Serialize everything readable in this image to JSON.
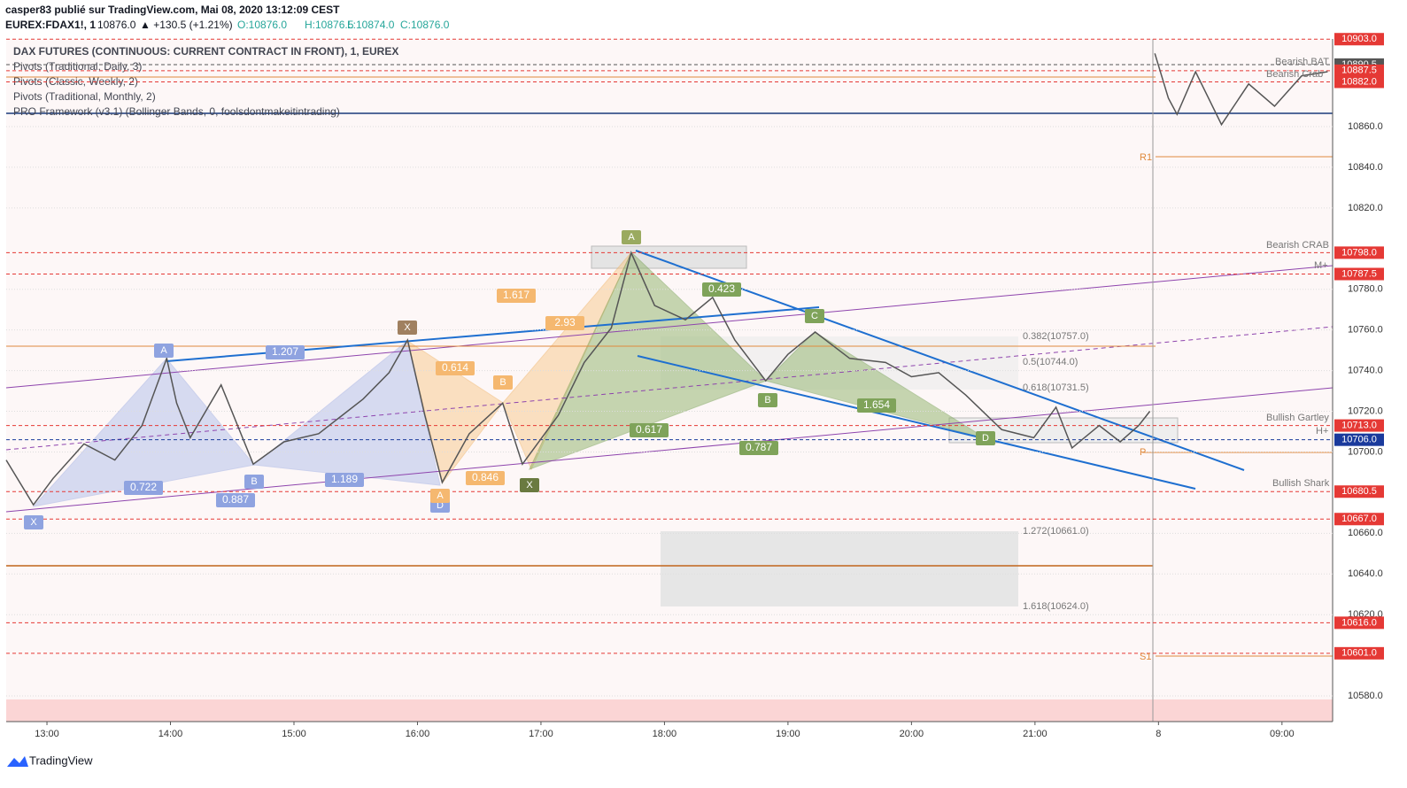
{
  "header": {
    "author_line": "casper83 publié sur TradingView.com, Mai 08, 2020 13:12:09 CEST",
    "symbol": "EUREX:FDAX1!, 1",
    "last": "10876.0",
    "change": "▲ +130.5 (+1.21%)",
    "open": "O:10876.0",
    "high": "H:10876.5",
    "low": "L:10874.0",
    "close": "C:10876.0"
  },
  "legend": [
    "Pivots (Traditional, Daily, 3)",
    "Pivots (Classic, Weekly, 2)",
    "Pivots (Traditional, Monthly, 2)",
    "PRO Framework (v3.1) (Bollinger Bands, 0, foolsdontmakeitintrading)"
  ],
  "footer": "TradingView",
  "chart_data": {
    "type": "line",
    "x": [
      -0.33,
      -0.11,
      0.05,
      0.3,
      0.55,
      0.77,
      0.97,
      1.05,
      1.16,
      1.41,
      1.67,
      1.92,
      2.2,
      2.56,
      2.77,
      2.92,
      3.06,
      3.2,
      3.42,
      3.69,
      3.85,
      4.14,
      4.35,
      4.57,
      4.73,
      4.92,
      5.17,
      5.39,
      5.57,
      5.82,
      6.0,
      6.22,
      6.5,
      6.79,
      7.0,
      7.22,
      7.44,
      7.73,
      7.99,
      8.17,
      8.3,
      8.52,
      8.69,
      8.84,
      8.93,
      8.95,
      8.97,
      9.08,
      9.15,
      9.3,
      9.51,
      9.73,
      9.94,
      10.16,
      10.37
    ],
    "series": [
      {
        "name": "DAX FUTURES (CONTINUOUS: CURRENT CONTRACT IN FRONT), 1, EUREX",
        "color": "#555555",
        "values": [
          10696,
          10674,
          10687,
          10704,
          10696,
          10713,
          10746,
          10724,
          10707,
          10733,
          10694,
          10705,
          10709,
          10726,
          10739,
          10755,
          10718,
          10685,
          10709,
          10724,
          10694,
          10718,
          10744,
          10761,
          10798,
          10772,
          10765,
          10776,
          10755,
          10735,
          10748,
          10759,
          10746,
          10744,
          10737,
          10739,
          10728,
          10711,
          10707,
          10722,
          10702,
          10713,
          10705,
          10713,
          10720,
          null,
          10896,
          10874,
          10866,
          10887,
          10861,
          10881,
          10870,
          10885,
          10887
        ]
      }
    ],
    "xlim": [
      -0.33,
      10.41
    ],
    "xticks": [
      {
        "value": 0,
        "label": "13:00"
      },
      {
        "value": 1,
        "label": "14:00"
      },
      {
        "value": 2,
        "label": "15:00"
      },
      {
        "value": 3,
        "label": "16:00"
      },
      {
        "value": 4,
        "label": "17:00"
      },
      {
        "value": 5,
        "label": "18:00"
      },
      {
        "value": 6,
        "label": "19:00"
      },
      {
        "value": 7,
        "label": "20:00"
      },
      {
        "value": 8,
        "label": "21:00"
      },
      {
        "value": 9,
        "label": "8"
      },
      {
        "value": 10,
        "label": "09:00"
      }
    ],
    "ylim": [
      10567.4,
      10903.1
    ],
    "yticks": [
      {
        "value": 10580,
        "label": "10580.0"
      },
      {
        "value": 10620,
        "label": "10620.0"
      },
      {
        "value": 10640,
        "label": "10640.0"
      },
      {
        "value": 10660,
        "label": "10660.0"
      },
      {
        "value": 10700,
        "label": "10700.0"
      },
      {
        "value": 10720,
        "label": "10720.0"
      },
      {
        "value": 10740,
        "label": "10740.0"
      },
      {
        "value": 10760,
        "label": "10760.0"
      },
      {
        "value": 10780,
        "label": "10780.0"
      },
      {
        "value": 10820,
        "label": "10820.0"
      },
      {
        "value": 10840,
        "label": "10840.0"
      },
      {
        "value": 10860,
        "label": "10860.0"
      }
    ],
    "grid": true,
    "levels": [
      {
        "value": 10903,
        "label": "10903.0",
        "color": "#e53935"
      },
      {
        "value": 10890.5,
        "label": "10890.5",
        "color": "#555555"
      },
      {
        "value": 10887.5,
        "label": "10887.5",
        "color": "#e53935"
      },
      {
        "value": 10882,
        "label": "10882.0",
        "color": "#e53935"
      },
      {
        "value": 10798,
        "label": "10798.0",
        "color": "#e53935"
      },
      {
        "value": 10787.5,
        "label": "10787.5",
        "color": "#e53935"
      },
      {
        "value": 10713,
        "label": "10713.0",
        "color": "#e53935"
      },
      {
        "value": 10706,
        "label": "10706.0",
        "color": "#1a3a9c"
      },
      {
        "value": 10680.5,
        "label": "10680.5",
        "color": "#e53935"
      },
      {
        "value": 10667,
        "label": "10667.0",
        "color": "#e53935"
      },
      {
        "value": 10616,
        "label": "10616.0",
        "color": "#e53935"
      },
      {
        "value": 10601,
        "label": "10601.0",
        "color": "#e53935"
      }
    ],
    "annotations": [
      "Bearish BAT",
      "Bearish Crab",
      "Bearish CRAB",
      "Bullish Gartley",
      "Bullish Shark",
      "R1",
      "S1",
      "P",
      "M+",
      "H+",
      "0.382(10757.0)",
      "0.5(10744.0)",
      "0.618(10731.5)",
      "1.272(10661.0)",
      "1.618(10624.0)"
    ],
    "ratios": [
      "0.722",
      "0.887",
      "1.189",
      "1.207",
      "0.614",
      "0.846",
      "1.617",
      "2.93",
      "0.617",
      "0.423",
      "0.787",
      "1.654"
    ],
    "pattern_points": [
      "X",
      "A",
      "B",
      "D",
      "X",
      "A",
      "B",
      "X",
      "A",
      "B",
      "C",
      "D"
    ]
  }
}
